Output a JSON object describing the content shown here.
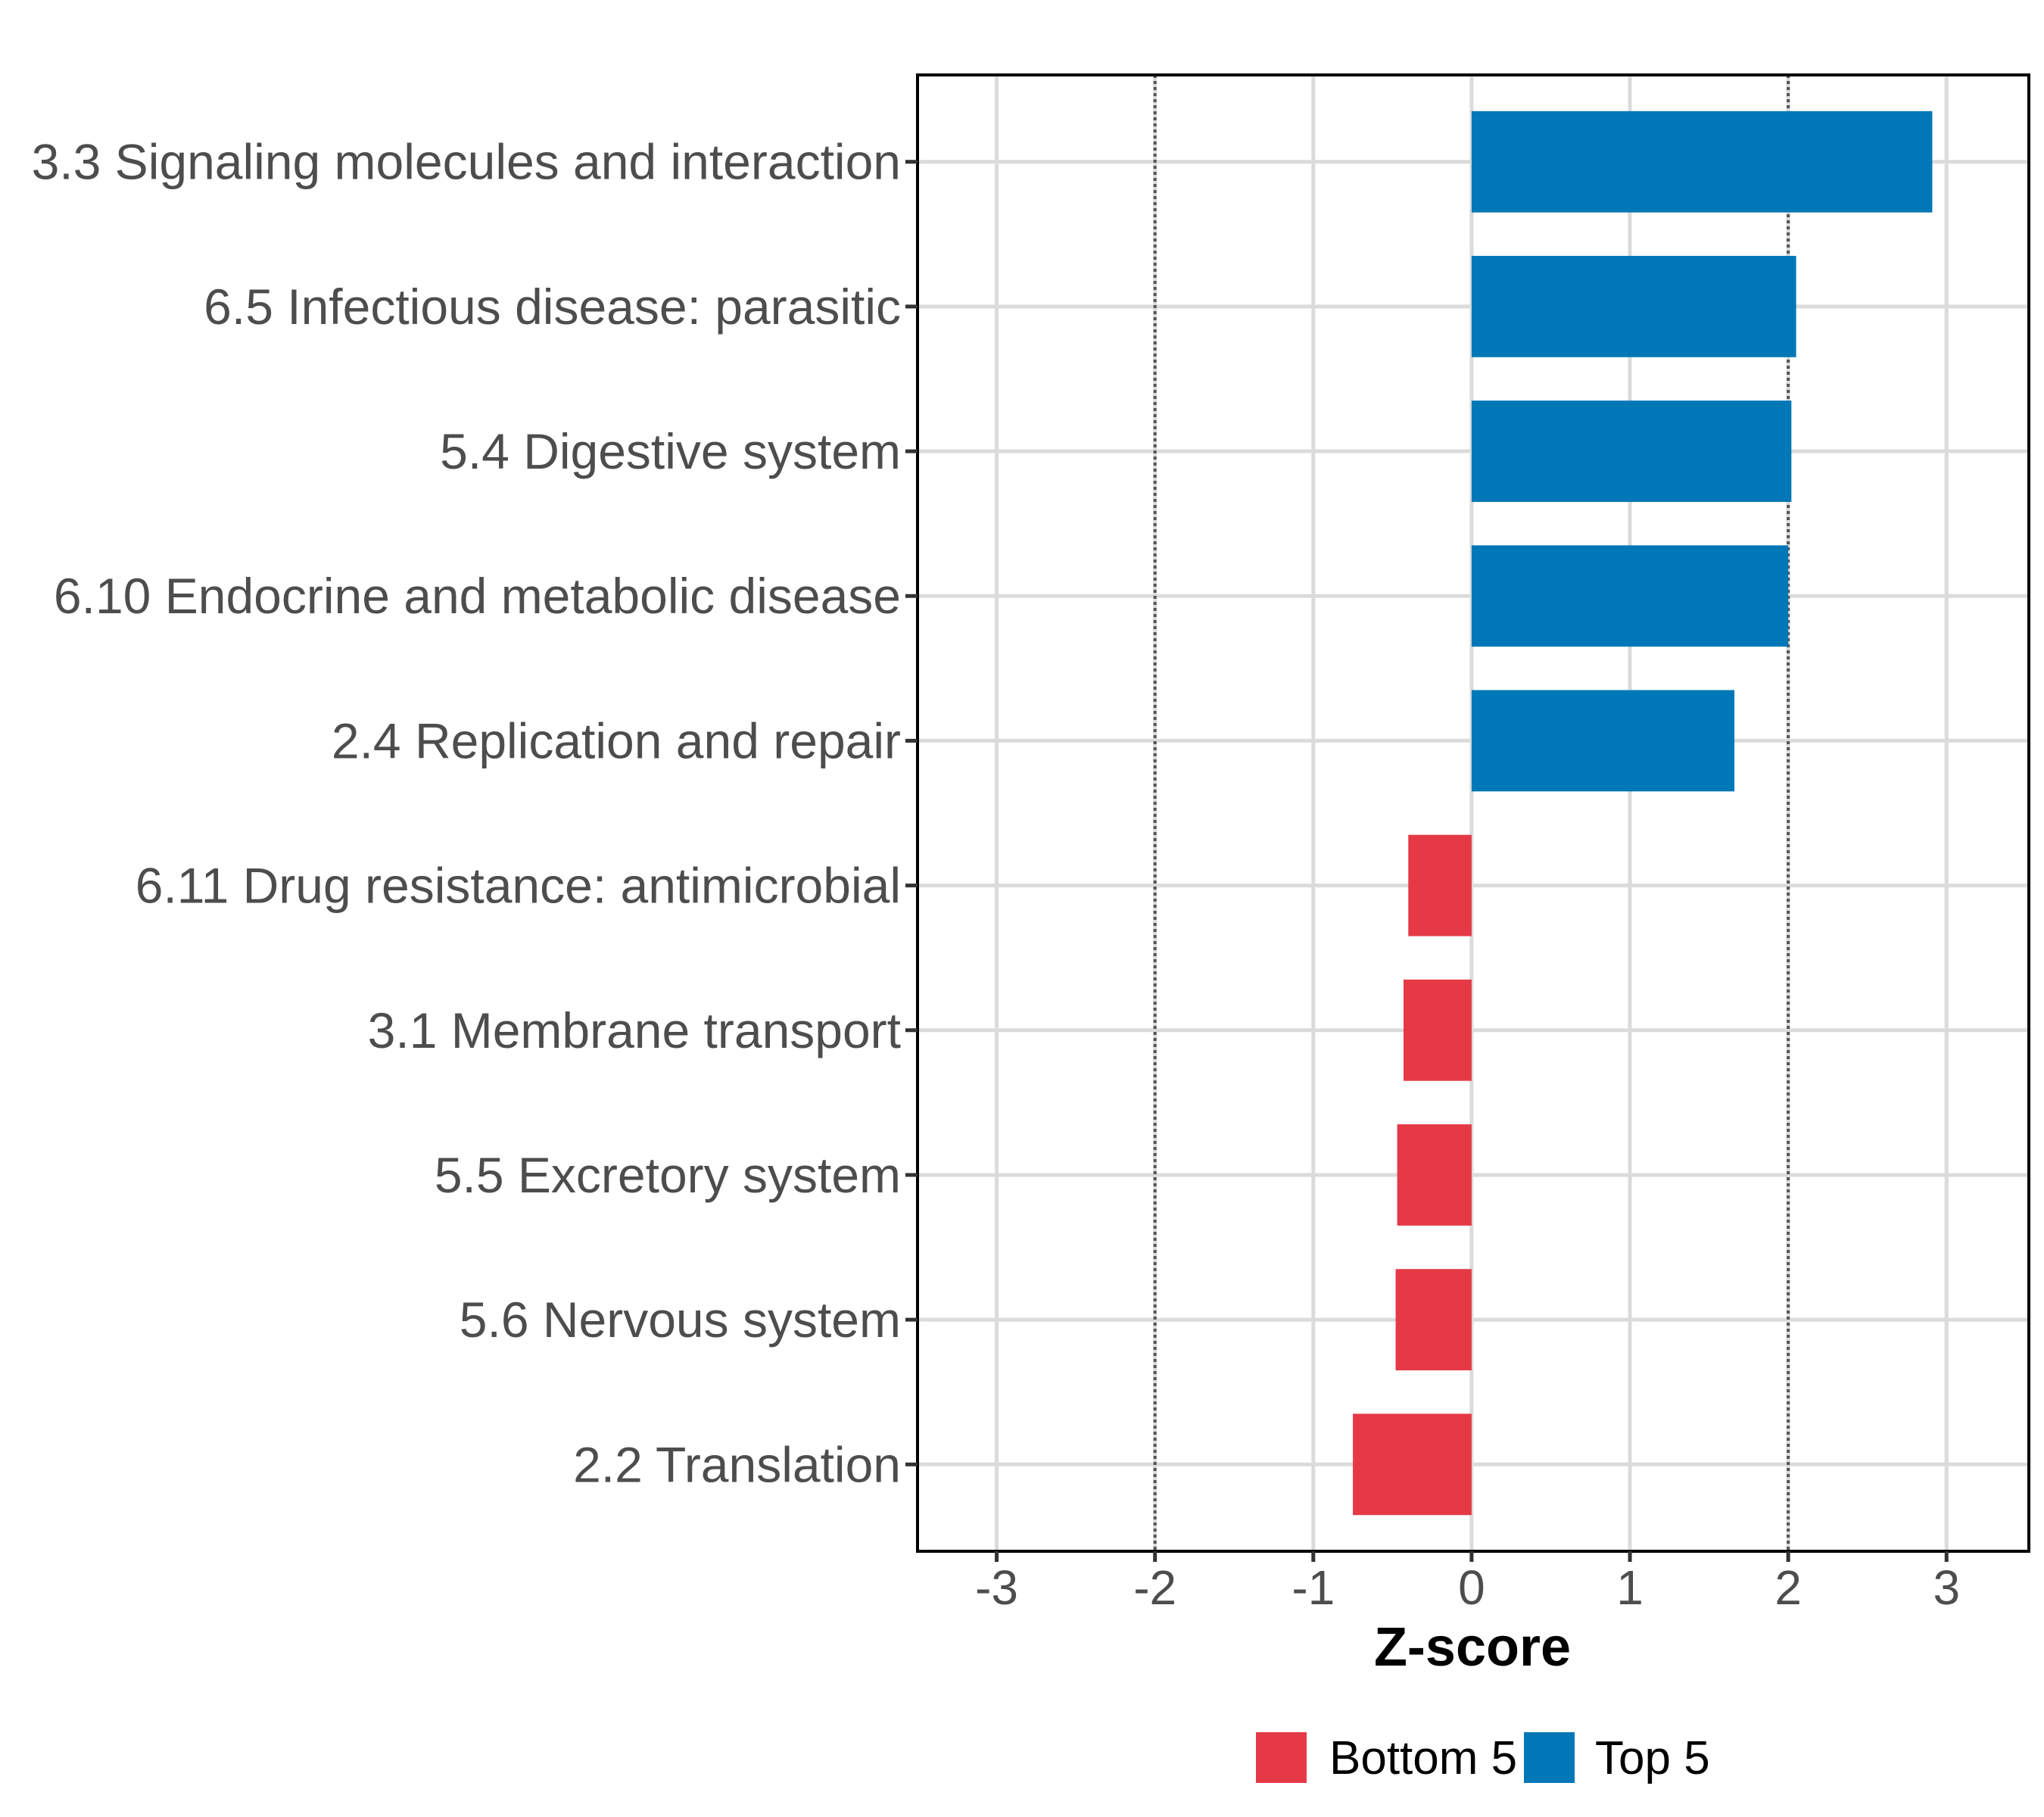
{
  "chart_data": {
    "type": "bar",
    "orientation": "horizontal",
    "title": "",
    "xlabel": "Z-score",
    "ylabel": "",
    "xlim": [
      -3.5,
      3.52
    ],
    "x_ticks": [
      -3,
      -2,
      -1,
      0,
      1,
      2,
      3
    ],
    "x_tick_labels": [
      "-3",
      "-2",
      "-1",
      "0",
      "1",
      "2",
      "3"
    ],
    "reference_lines": [
      -2,
      2
    ],
    "grid": true,
    "legend_position": "bottom",
    "categories": [
      "3.3 Signaling molecules and interaction",
      "6.5 Infectious disease: parasitic",
      "5.4 Digestive system",
      "6.10 Endocrine and metabolic disease",
      "2.4 Replication and repair",
      "6.11 Drug resistance: antimicrobial",
      "3.1 Membrane transport",
      "5.5 Excretory system",
      "5.6 Nervous system",
      "2.2 Translation"
    ],
    "values": [
      2.91,
      2.05,
      2.02,
      2.0,
      1.66,
      -0.4,
      -0.43,
      -0.47,
      -0.48,
      -0.75
    ],
    "groups": [
      "Top 5",
      "Top 5",
      "Top 5",
      "Top 5",
      "Top 5",
      "Bottom 5",
      "Bottom 5",
      "Bottom 5",
      "Bottom 5",
      "Bottom 5"
    ],
    "legend": [
      {
        "name": "Bottom 5",
        "color": "#E63946"
      },
      {
        "name": "Top 5",
        "color": "#0077B6"
      }
    ]
  }
}
